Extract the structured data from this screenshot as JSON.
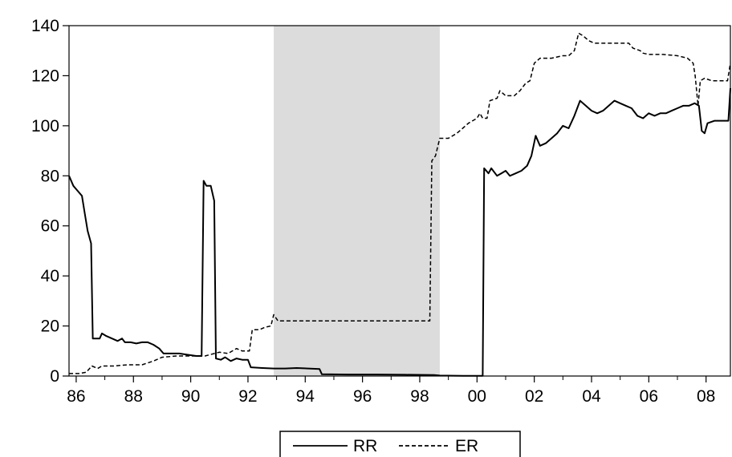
{
  "chart_data": {
    "type": "line",
    "title": "",
    "xlabel": "",
    "ylabel": "",
    "xlim": [
      1985.75,
      2008.85
    ],
    "ylim": [
      0,
      140
    ],
    "yticks": [
      0,
      20,
      40,
      60,
      80,
      100,
      120,
      140
    ],
    "xticks": [
      {
        "value": 1986,
        "label": "86"
      },
      {
        "value": 1988,
        "label": "88"
      },
      {
        "value": 1990,
        "label": "90"
      },
      {
        "value": 1992,
        "label": "92"
      },
      {
        "value": 1994,
        "label": "94"
      },
      {
        "value": 1996,
        "label": "96"
      },
      {
        "value": 1998,
        "label": "98"
      },
      {
        "value": 2000,
        "label": "00"
      },
      {
        "value": 2002,
        "label": "02"
      },
      {
        "value": 2004,
        "label": "04"
      },
      {
        "value": 2006,
        "label": "06"
      },
      {
        "value": 2008,
        "label": "08"
      }
    ],
    "shaded_region": {
      "x_start": 1992.9,
      "x_end": 1998.7,
      "color": "#dcdcdc"
    },
    "grid": false,
    "legend_position": "bottom-center",
    "series": [
      {
        "name": "RR",
        "style": "solid",
        "color": "#000000",
        "points": [
          [
            1985.75,
            80
          ],
          [
            1985.9,
            76
          ],
          [
            1986.05,
            74
          ],
          [
            1986.2,
            72
          ],
          [
            1986.3,
            65
          ],
          [
            1986.4,
            58
          ],
          [
            1986.52,
            53
          ],
          [
            1986.58,
            15
          ],
          [
            1986.7,
            15
          ],
          [
            1986.82,
            15
          ],
          [
            1986.9,
            17
          ],
          [
            1987.05,
            16
          ],
          [
            1987.25,
            15
          ],
          [
            1987.45,
            14
          ],
          [
            1987.6,
            15
          ],
          [
            1987.7,
            13.5
          ],
          [
            1987.9,
            13.5
          ],
          [
            1988.1,
            13
          ],
          [
            1988.3,
            13.5
          ],
          [
            1988.5,
            13.5
          ],
          [
            1988.7,
            12.5
          ],
          [
            1988.9,
            11
          ],
          [
            1989.05,
            9
          ],
          [
            1989.3,
            9
          ],
          [
            1989.6,
            9
          ],
          [
            1989.9,
            8.5
          ],
          [
            1990.2,
            8
          ],
          [
            1990.38,
            8
          ],
          [
            1990.45,
            78
          ],
          [
            1990.55,
            76
          ],
          [
            1990.7,
            76
          ],
          [
            1990.82,
            70
          ],
          [
            1990.88,
            7
          ],
          [
            1991.05,
            6.5
          ],
          [
            1991.2,
            7.5
          ],
          [
            1991.4,
            6
          ],
          [
            1991.6,
            7
          ],
          [
            1991.8,
            6.5
          ],
          [
            1992.0,
            6.5
          ],
          [
            1992.1,
            3.5
          ],
          [
            1992.5,
            3.2
          ],
          [
            1992.9,
            3
          ],
          [
            1993.3,
            3
          ],
          [
            1993.7,
            3.2
          ],
          [
            1994.1,
            3
          ],
          [
            1994.5,
            2.8
          ],
          [
            1994.58,
            0.7
          ],
          [
            1995.5,
            0.6
          ],
          [
            1996.5,
            0.6
          ],
          [
            1997.5,
            0.5
          ],
          [
            1998.5,
            0.4
          ],
          [
            1998.7,
            0.2
          ],
          [
            1999.5,
            0.1
          ],
          [
            2000.2,
            0.1
          ],
          [
            2000.25,
            83
          ],
          [
            2000.4,
            81
          ],
          [
            2000.5,
            83
          ],
          [
            2000.7,
            80
          ],
          [
            2000.85,
            81
          ],
          [
            2001.0,
            82
          ],
          [
            2001.15,
            80
          ],
          [
            2001.35,
            81
          ],
          [
            2001.55,
            82
          ],
          [
            2001.75,
            84
          ],
          [
            2001.9,
            88
          ],
          [
            2002.05,
            96
          ],
          [
            2002.2,
            92
          ],
          [
            2002.4,
            93
          ],
          [
            2002.6,
            95
          ],
          [
            2002.8,
            97
          ],
          [
            2003.0,
            100
          ],
          [
            2003.2,
            99
          ],
          [
            2003.4,
            104
          ],
          [
            2003.6,
            110
          ],
          [
            2003.8,
            108
          ],
          [
            2004.0,
            106
          ],
          [
            2004.2,
            105
          ],
          [
            2004.4,
            106
          ],
          [
            2004.6,
            108
          ],
          [
            2004.8,
            110
          ],
          [
            2005.0,
            109
          ],
          [
            2005.2,
            108
          ],
          [
            2005.4,
            107
          ],
          [
            2005.6,
            104
          ],
          [
            2005.8,
            103
          ],
          [
            2006.0,
            105
          ],
          [
            2006.2,
            104
          ],
          [
            2006.4,
            105
          ],
          [
            2006.6,
            105
          ],
          [
            2006.8,
            106
          ],
          [
            2007.0,
            107
          ],
          [
            2007.2,
            108
          ],
          [
            2007.4,
            108
          ],
          [
            2007.6,
            109
          ],
          [
            2007.75,
            108
          ],
          [
            2007.85,
            98
          ],
          [
            2007.95,
            97
          ],
          [
            2008.05,
            101
          ],
          [
            2008.3,
            102
          ],
          [
            2008.55,
            102
          ],
          [
            2008.78,
            102
          ],
          [
            2008.85,
            115
          ]
        ]
      },
      {
        "name": "ER",
        "style": "dashed",
        "color": "#000000",
        "points": [
          [
            1985.75,
            1
          ],
          [
            1986.1,
            1
          ],
          [
            1986.35,
            1.5
          ],
          [
            1986.55,
            4
          ],
          [
            1986.75,
            3
          ],
          [
            1986.9,
            4
          ],
          [
            1987.3,
            4
          ],
          [
            1987.8,
            4.5
          ],
          [
            1988.3,
            4.5
          ],
          [
            1988.7,
            6
          ],
          [
            1989.0,
            7.5
          ],
          [
            1989.5,
            8
          ],
          [
            1990.0,
            8
          ],
          [
            1990.5,
            8
          ],
          [
            1991.0,
            9.5
          ],
          [
            1991.3,
            9
          ],
          [
            1991.6,
            11
          ],
          [
            1991.8,
            10
          ],
          [
            1992.05,
            10
          ],
          [
            1992.15,
            18.5
          ],
          [
            1992.4,
            18.5
          ],
          [
            1992.6,
            19.5
          ],
          [
            1992.8,
            20
          ],
          [
            1992.9,
            24.5
          ],
          [
            1993.05,
            22
          ],
          [
            1995.0,
            22
          ],
          [
            1997.0,
            22
          ],
          [
            1998.35,
            22
          ],
          [
            1998.42,
            86
          ],
          [
            1998.55,
            88
          ],
          [
            1998.7,
            95
          ],
          [
            1999.0,
            95
          ],
          [
            1999.3,
            97
          ],
          [
            1999.5,
            99
          ],
          [
            1999.7,
            101
          ],
          [
            2000.0,
            103
          ],
          [
            2000.1,
            105
          ],
          [
            2000.2,
            103
          ],
          [
            2000.35,
            103
          ],
          [
            2000.45,
            110
          ],
          [
            2000.7,
            111
          ],
          [
            2000.8,
            114
          ],
          [
            2001.0,
            112
          ],
          [
            2001.3,
            112
          ],
          [
            2001.5,
            114
          ],
          [
            2001.7,
            117
          ],
          [
            2001.85,
            118
          ],
          [
            2002.0,
            125
          ],
          [
            2002.2,
            127
          ],
          [
            2002.6,
            127
          ],
          [
            2003.0,
            128
          ],
          [
            2003.2,
            128
          ],
          [
            2003.4,
            130
          ],
          [
            2003.55,
            137
          ],
          [
            2003.7,
            136
          ],
          [
            2003.9,
            134
          ],
          [
            2004.1,
            133
          ],
          [
            2004.5,
            133
          ],
          [
            2004.9,
            133
          ],
          [
            2005.3,
            133
          ],
          [
            2005.45,
            131
          ],
          [
            2005.7,
            130
          ],
          [
            2005.8,
            129
          ],
          [
            2006.0,
            128.5
          ],
          [
            2006.5,
            128.5
          ],
          [
            2007.0,
            128
          ],
          [
            2007.35,
            127
          ],
          [
            2007.55,
            125
          ],
          [
            2007.62,
            120
          ],
          [
            2007.72,
            108
          ],
          [
            2007.8,
            118
          ],
          [
            2007.95,
            119
          ],
          [
            2008.2,
            118
          ],
          [
            2008.5,
            118
          ],
          [
            2008.75,
            118
          ],
          [
            2008.85,
            125
          ]
        ]
      }
    ]
  }
}
